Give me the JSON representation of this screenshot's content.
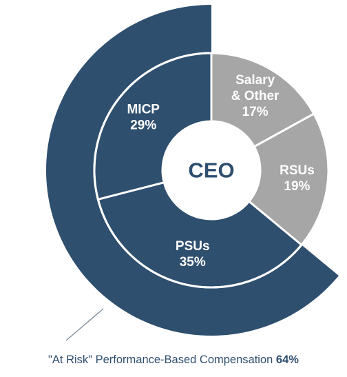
{
  "chart_data": {
    "type": "pie",
    "variant": "donut-with-outer-arc",
    "center_label": "CEO",
    "slices": [
      {
        "label_lines": [
          "Salary",
          "& Other"
        ],
        "value": 17,
        "value_text": "17%",
        "group": "fixed"
      },
      {
        "label_lines": [
          "RSUs"
        ],
        "value": 19,
        "value_text": "19%",
        "group": "fixed"
      },
      {
        "label_lines": [
          "PSUs"
        ],
        "value": 35,
        "value_text": "35%",
        "group": "at_risk"
      },
      {
        "label_lines": [
          "MICP"
        ],
        "value": 29,
        "value_text": "29%",
        "group": "at_risk"
      }
    ],
    "outer_arc": {
      "caption_prefix": "\"At Risk\" Performance-Based Compensation ",
      "caption_value": "64%",
      "value": 64
    }
  },
  "colors": {
    "at_risk": "#2f4f6f",
    "fixed": "#a6a6a6",
    "center_text": "#2f4f6f",
    "caption_text": "#2f4f6f",
    "leader_line": "#7f8c99"
  }
}
